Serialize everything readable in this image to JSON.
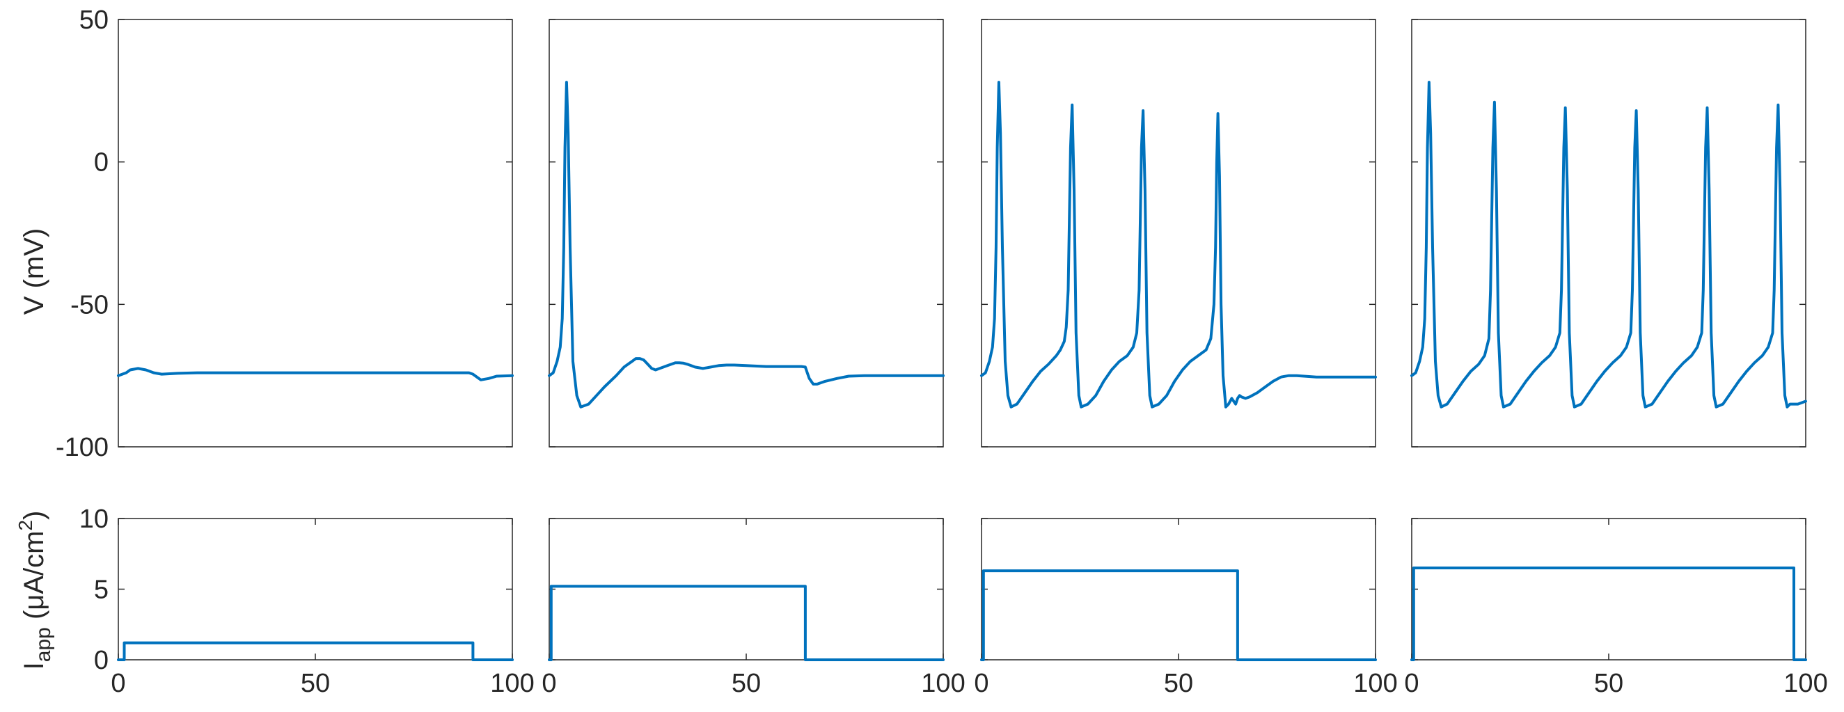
{
  "chart_data": [
    {
      "type": "line",
      "panel": "voltage",
      "columns": 4,
      "ylabel": "V (mV)",
      "ylim": [
        -100,
        50
      ],
      "xlim": [
        0,
        100
      ],
      "yticks": [
        "50",
        "0",
        "-50",
        "-100"
      ],
      "ytick_values": [
        50,
        0,
        -50,
        -100
      ],
      "xticks": [],
      "color": "#0072BD",
      "series": [
        {
          "x": [
            0,
            1,
            2,
            3,
            5,
            7,
            9,
            11,
            15,
            20,
            30,
            40,
            50,
            60,
            70,
            80,
            89,
            90,
            91,
            92,
            94,
            96,
            100
          ],
          "values": [
            -75,
            -74.5,
            -74,
            -73,
            -72.5,
            -73,
            -74,
            -74.5,
            -74.2,
            -74,
            -74,
            -74,
            -74,
            -74,
            -74,
            -74,
            -74,
            -74.5,
            -75.5,
            -76.5,
            -76,
            -75.2,
            -75
          ]
        },
        {
          "x": [
            0,
            1,
            2,
            2.8,
            3.3,
            3.7,
            4.0,
            4.4,
            4.8,
            5.3,
            6,
            7,
            8,
            10,
            12,
            14,
            17,
            19,
            20,
            21,
            22,
            23,
            24,
            25,
            26,
            27,
            28,
            29,
            30,
            31,
            32,
            33,
            34,
            35,
            36,
            37,
            39,
            41,
            43,
            45,
            47,
            50,
            55,
            60,
            64,
            65,
            65.5,
            66,
            67,
            68,
            70,
            73,
            76,
            80,
            85,
            90,
            100
          ],
          "values": [
            -75,
            -74,
            -70,
            -65,
            -55,
            -30,
            5,
            28,
            10,
            -30,
            -70,
            -82,
            -86,
            -85,
            -82,
            -79,
            -75,
            -72,
            -71,
            -70,
            -69,
            -69,
            -69.5,
            -71,
            -72.5,
            -73,
            -72.5,
            -72,
            -71.5,
            -71,
            -70.5,
            -70.5,
            -70.6,
            -71,
            -71.5,
            -72,
            -72.5,
            -72,
            -71.5,
            -71.3,
            -71.3,
            -71.5,
            -71.8,
            -71.8,
            -71.8,
            -72,
            -74,
            -76,
            -78,
            -78,
            -77,
            -76,
            -75.2,
            -75,
            -75,
            -75,
            -75
          ]
        },
        {
          "x": [
            0,
            1,
            2,
            2.8,
            3.3,
            3.7,
            4.0,
            4.4,
            4.8,
            5.3,
            6,
            6.7,
            7.5,
            9,
            11,
            13,
            15,
            17,
            19,
            20,
            21,
            21.5,
            22,
            22.3,
            22.6,
            23,
            23.5,
            24,
            24.7,
            25.3,
            27,
            29,
            31,
            33,
            35,
            37,
            38.5,
            39.4,
            40,
            40.3,
            40.6,
            41,
            41.5,
            42,
            42.7,
            43.3,
            45,
            47,
            49,
            51,
            53,
            55,
            57,
            58.2,
            59,
            59.4,
            59.7,
            60,
            60.4,
            60.8,
            61.3,
            62,
            62.7,
            63.5,
            64.5,
            65,
            65.5,
            66,
            67,
            68,
            70,
            72,
            74,
            76,
            78,
            80,
            85,
            90,
            100
          ],
          "values": [
            -75,
            -74,
            -70,
            -65,
            -55,
            -30,
            5,
            28,
            10,
            -30,
            -70,
            -82,
            -86,
            -85,
            -81,
            -77,
            -73.5,
            -71,
            -68,
            -66,
            -63,
            -58,
            -45,
            -20,
            5,
            20,
            -10,
            -60,
            -82,
            -86,
            -85,
            -82,
            -77,
            -73,
            -70,
            -68,
            -65,
            -60,
            -45,
            -20,
            5,
            18,
            -10,
            -60,
            -82,
            -86,
            -85,
            -82,
            -77,
            -73,
            -70,
            -68,
            -66,
            -62,
            -50,
            -30,
            0,
            17,
            -5,
            -50,
            -75,
            -86,
            -85,
            -83,
            -85,
            -83,
            -82,
            -82.5,
            -83,
            -82.5,
            -81,
            -79,
            -77,
            -75.5,
            -75,
            -75,
            -75.5,
            -75.5,
            -75.5
          ]
        },
        {
          "x": [
            0,
            1,
            2,
            2.8,
            3.3,
            3.7,
            4.0,
            4.4,
            4.8,
            5.3,
            6,
            6.7,
            7.5,
            9,
            11,
            13,
            15,
            17,
            18.5,
            19.6,
            20,
            20.3,
            20.6,
            21,
            21.5,
            22,
            22.7,
            23.3,
            25,
            27,
            29,
            31,
            33,
            35,
            36.5,
            37.6,
            38,
            38.3,
            38.6,
            39,
            39.5,
            40,
            40.7,
            41.3,
            43,
            45,
            47,
            49,
            51,
            53,
            54.5,
            55.6,
            56,
            56.3,
            56.6,
            57,
            57.5,
            58,
            58.7,
            59.3,
            61,
            63,
            65,
            67,
            69,
            71,
            72.5,
            73.6,
            74,
            74.3,
            74.6,
            75,
            75.5,
            76,
            76.7,
            77.3,
            79,
            81,
            83,
            85,
            87,
            89,
            90.5,
            91.6,
            92,
            92.3,
            92.6,
            93,
            93.5,
            94,
            94.7,
            95.3,
            96,
            97,
            98,
            100
          ],
          "values": [
            -75,
            -74,
            -70,
            -65,
            -55,
            -30,
            5,
            28,
            10,
            -30,
            -70,
            -82,
            -86,
            -85,
            -81,
            -77,
            -73.5,
            -71,
            -68,
            -62,
            -45,
            -20,
            5,
            21,
            -10,
            -60,
            -82,
            -86,
            -85,
            -81,
            -77,
            -73.5,
            -70.5,
            -68,
            -65,
            -60,
            -45,
            -20,
            5,
            19,
            -10,
            -60,
            -82,
            -86,
            -85,
            -81,
            -77,
            -73.5,
            -70.5,
            -68,
            -65,
            -60,
            -45,
            -20,
            5,
            18,
            -10,
            -60,
            -82,
            -86,
            -85,
            -81,
            -77,
            -73.5,
            -70.5,
            -68,
            -65,
            -60,
            -45,
            -20,
            5,
            19,
            -10,
            -60,
            -82,
            -86,
            -85,
            -81,
            -77,
            -73.5,
            -70.5,
            -68,
            -65,
            -60,
            -45,
            -20,
            5,
            20,
            -10,
            -60,
            -82,
            -86,
            -85,
            -85,
            -85,
            -84
          ]
        }
      ]
    },
    {
      "type": "line",
      "panel": "current",
      "columns": 4,
      "ylabel": "I",
      "ylabel_sub": "app",
      "ylabel_units": " (μA/cm",
      "ylabel_sup": "2",
      "ylabel_close": ")",
      "ylim": [
        0,
        10
      ],
      "xlim": [
        0,
        100
      ],
      "yticks": [
        "10",
        "5",
        "0"
      ],
      "ytick_values": [
        10,
        5,
        0
      ],
      "xticks": [
        "0",
        "50",
        "100"
      ],
      "xtick_values": [
        0,
        50,
        100
      ],
      "color": "#0072BD",
      "series": [
        {
          "x": [
            0,
            1.5,
            1.5,
            90,
            90,
            100
          ],
          "values": [
            0,
            0,
            1.2,
            1.2,
            0,
            0
          ]
        },
        {
          "x": [
            0,
            0.5,
            0.5,
            65,
            65,
            100
          ],
          "values": [
            0,
            0,
            5.2,
            5.2,
            0,
            0
          ]
        },
        {
          "x": [
            0,
            0.5,
            0.5,
            65,
            65,
            100
          ],
          "values": [
            0,
            0,
            6.3,
            6.3,
            0,
            0
          ]
        },
        {
          "x": [
            0,
            0.5,
            0.5,
            97,
            97,
            100
          ],
          "values": [
            0,
            0,
            6.5,
            6.5,
            0,
            0
          ]
        }
      ]
    }
  ]
}
